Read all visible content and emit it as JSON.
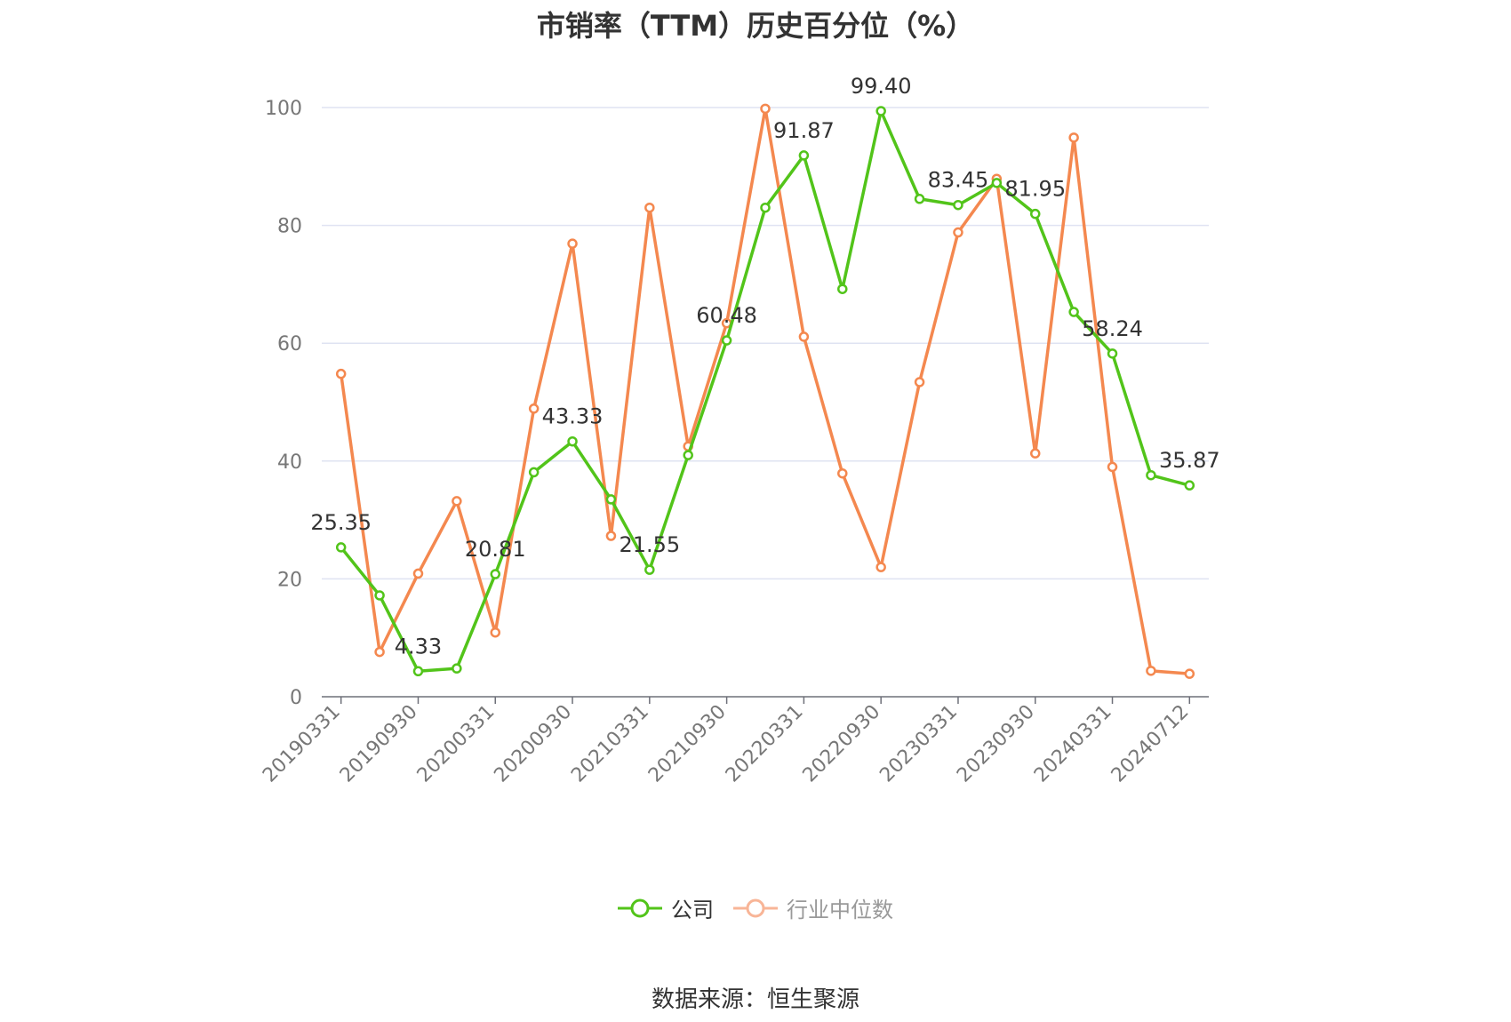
{
  "source_text": "数据来源：恒生聚源",
  "colors": {
    "company": "#52c41a",
    "industry": "#f4884f",
    "industry_legend": "#f8b597",
    "grid": "#dfe3f2",
    "axis": "#6e7079",
    "text": "#333333",
    "tick": "#777777"
  },
  "chart_data": {
    "type": "line",
    "title": "市销率（TTM）历史百分位（%）",
    "xlabel": "",
    "ylabel": "",
    "ylim": [
      0,
      100
    ],
    "yticks": [
      0,
      20,
      40,
      60,
      80,
      100
    ],
    "grid": true,
    "legend_position": "bottom",
    "x": [
      "20190331",
      "20190630",
      "20190930",
      "20191231",
      "20200331",
      "20200630",
      "20200930",
      "20201231",
      "20210331",
      "20210630",
      "20210930",
      "20211231",
      "20220331",
      "20220630",
      "20220930",
      "20221231",
      "20230331",
      "20230630",
      "20230930",
      "20231231",
      "20240331",
      "20240630",
      "20240712"
    ],
    "xtick_labels": [
      "20190331",
      "20190930",
      "20200331",
      "20200930",
      "20210331",
      "20210930",
      "20220331",
      "20220930",
      "20230331",
      "20230930",
      "20240331",
      "20240712"
    ],
    "series": [
      {
        "name": "公司",
        "values": [
          25.35,
          17.2,
          4.33,
          4.8,
          20.81,
          38.1,
          43.33,
          33.5,
          21.55,
          41.0,
          60.48,
          83.0,
          91.87,
          69.2,
          99.4,
          84.5,
          83.45,
          87.2,
          81.95,
          65.3,
          58.24,
          37.6,
          35.87
        ],
        "labels": [
          "25.35",
          "",
          "4.33",
          "",
          "20.81",
          "",
          "43.33",
          "",
          "21.55",
          "",
          "60.48",
          "",
          "91.87",
          "",
          "99.40",
          "",
          "83.45",
          "",
          "81.95",
          "",
          "58.24",
          "",
          "35.87"
        ]
      },
      {
        "name": "行业中位数",
        "values": [
          54.8,
          7.6,
          20.9,
          33.2,
          10.9,
          48.9,
          76.9,
          27.3,
          83.0,
          42.5,
          63.4,
          99.8,
          61.1,
          37.9,
          22.0,
          53.4,
          78.8,
          87.9,
          41.3,
          94.9,
          39.0,
          4.4,
          3.9
        ]
      }
    ]
  }
}
